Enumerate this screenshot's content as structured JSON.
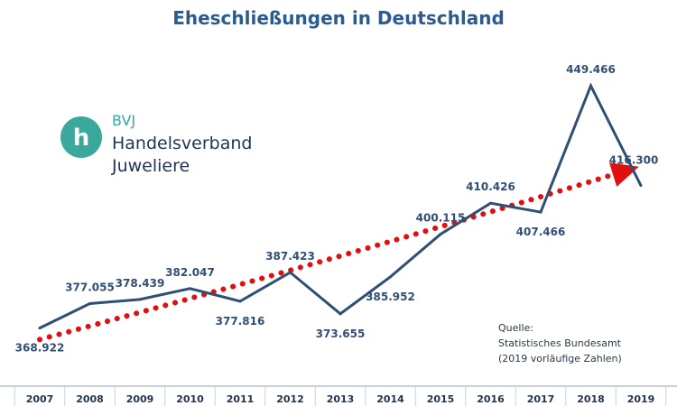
{
  "page": {
    "title": "Eheschließungen in Deutschland"
  },
  "logo": {
    "mark_letter": "h",
    "code": "BVJ",
    "line1": "Handelsverband",
    "line2": "Juweliere"
  },
  "source": {
    "line1": "Quelle:",
    "line2": "Statistisches Bundesamt",
    "line3": "(2019 vorläufige Zahlen)"
  },
  "colors": {
    "line": "#2f4f75",
    "trend": "#e01010",
    "label": "#2f4f75",
    "axis": "#1f3550",
    "title": "#2e5b8c",
    "brand": "#3aa89b"
  },
  "chart_data": {
    "type": "line",
    "title": "Eheschließungen in Deutschland",
    "xlabel": "",
    "ylabel": "",
    "x": [
      "2007",
      "2008",
      "2009",
      "2010",
      "2011",
      "2012",
      "2013",
      "2014",
      "2015",
      "2016",
      "2017",
      "2018",
      "2019"
    ],
    "series": [
      {
        "values": [
          368922,
          377055,
          378439,
          382047,
          377816,
          387423,
          373655,
          385952,
          400115,
          410426,
          407466,
          449466,
          416300
        ],
        "labels": [
          "368.922",
          "377.055",
          "378.439",
          "382.047",
          "377.816",
          "387.423",
          "373.655",
          "385.952",
          "400.115",
          "410.426",
          "407.466",
          "449.466",
          "416.300"
        ],
        "color": "#2f4f75"
      }
    ],
    "trendline": {
      "style": "dotted",
      "color": "#e01010",
      "arrow": true
    },
    "ylim": [
      340000,
      460000
    ],
    "grid": false,
    "legend": "none"
  }
}
